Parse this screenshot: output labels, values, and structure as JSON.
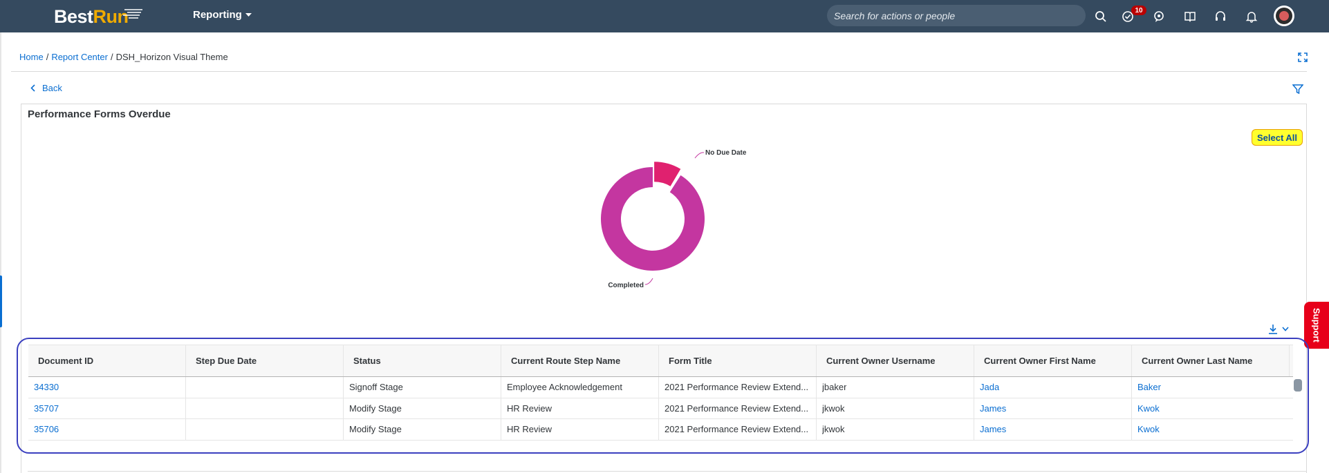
{
  "header": {
    "logo_best": "Best",
    "logo_run": "Run",
    "module": "Reporting",
    "search_placeholder": "Search for actions or people",
    "todo_badge": "10",
    "colors": {
      "bar": "#354a5f",
      "accent": "#f0ab00",
      "badge": "#bb0000"
    },
    "icons": [
      "search-icon",
      "todo-icon",
      "chat-icon",
      "book-icon",
      "headset-icon",
      "bell-icon",
      "avatar"
    ]
  },
  "breadcrumb": {
    "items": [
      "Home",
      "Report Center"
    ],
    "separator": "/",
    "current": "DSH_Horizon Visual Theme"
  },
  "back_label": "Back",
  "panel": {
    "title": "Performance Forms Overdue",
    "select_all": "Select All"
  },
  "chart_data": {
    "type": "pie",
    "variant": "donut",
    "title": "",
    "slices": [
      {
        "label": "Completed",
        "value": 91.5,
        "color": "#c436a0"
      },
      {
        "label": "No Due Date",
        "value": 8.5,
        "color": "#e0216f",
        "exploded": true
      }
    ]
  },
  "support_label": "Support",
  "table": {
    "columns": [
      "Document ID",
      "Step Due Date",
      "Status",
      "Current Route Step Name",
      "Form Title",
      "Current Owner Username",
      "Current Owner First Name",
      "Current Owner Last Name"
    ],
    "rows": [
      [
        "34330",
        "",
        "Signoff Stage",
        "Employee Acknowledgement",
        "2021 Performance Review Extend...",
        "jbaker",
        "Jada",
        "Baker"
      ],
      [
        "35707",
        "",
        "Modify Stage",
        "HR Review",
        "2021 Performance Review Extend...",
        "jkwok",
        "James",
        "Kwok"
      ],
      [
        "35706",
        "",
        "Modify Stage",
        "HR Review",
        "2021 Performance Review Extend...",
        "jkwok",
        "James",
        "Kwok"
      ]
    ],
    "link_columns": [
      0,
      6,
      7
    ]
  }
}
